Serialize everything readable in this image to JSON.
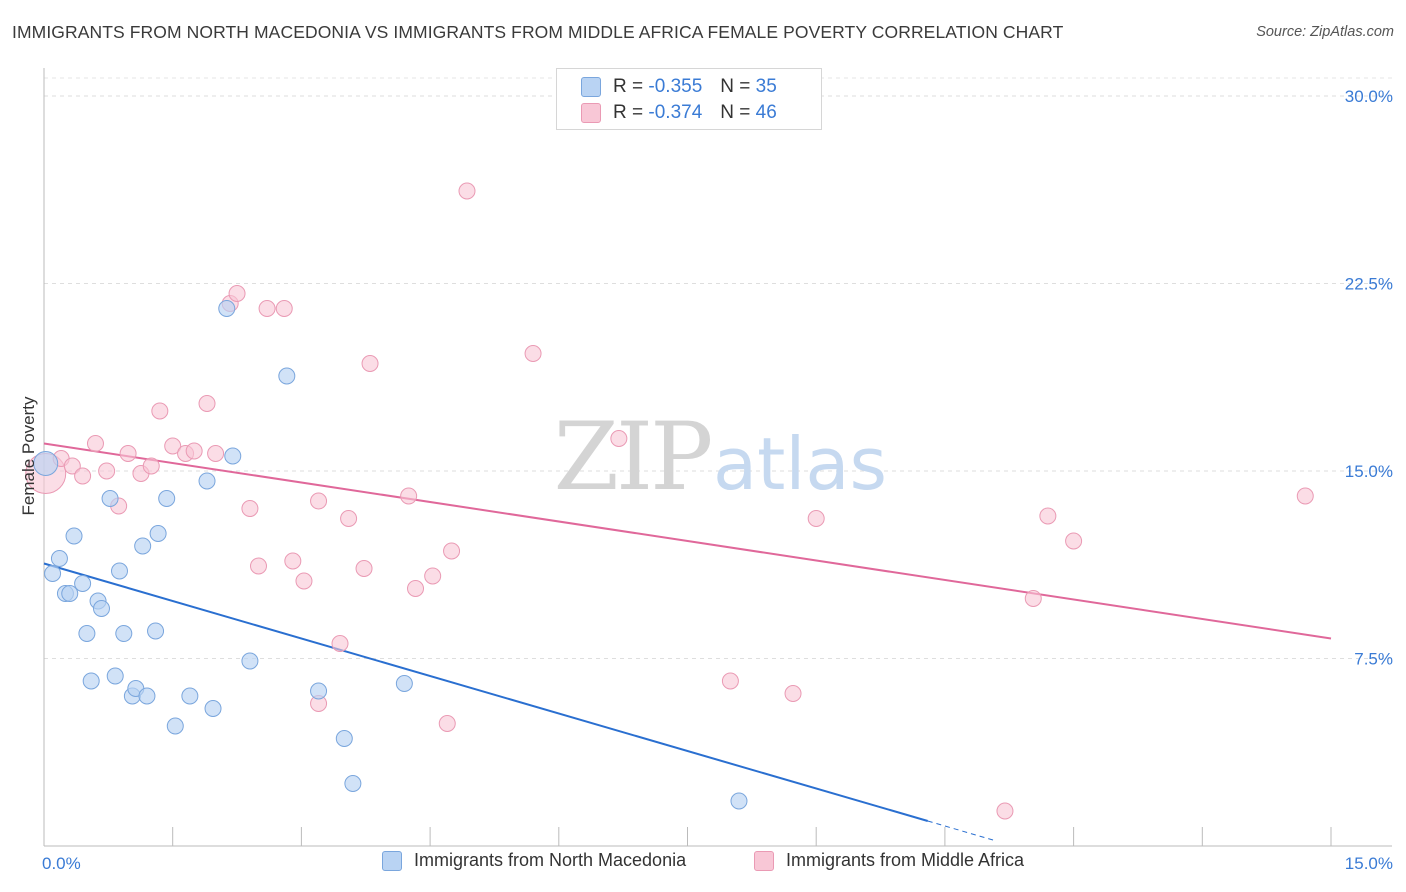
{
  "title": "IMMIGRANTS FROM NORTH MACEDONIA VS IMMIGRANTS FROM MIDDLE AFRICA FEMALE POVERTY CORRELATION CHART",
  "source": "Source: ZipAtlas.com",
  "watermark": {
    "zip": "ZIP",
    "atlas": "atlas"
  },
  "colors": {
    "blue_fill": "#b9d3f3",
    "blue_stroke": "#7aa6dd",
    "blue_line": "#2a6fd0",
    "pink_fill": "#f8c7d6",
    "pink_stroke": "#ea9ab4",
    "pink_line": "#e0689a",
    "axis_label": "#3a7bd5"
  },
  "legend_stats": [
    {
      "r_label": "R =",
      "r_value": "-0.355",
      "n_label": "N =",
      "n_value": "35"
    },
    {
      "r_label": "R =",
      "r_value": "-0.374",
      "n_label": "N =",
      "n_value": "46"
    }
  ],
  "chart_data": {
    "type": "scatter",
    "title": "IMMIGRANTS FROM NORTH MACEDONIA VS IMMIGRANTS FROM MIDDLE AFRICA FEMALE POVERTY CORRELATION CHART",
    "xlabel": "",
    "ylabel": "Female Poverty",
    "xlim": [
      0,
      15
    ],
    "ylim": [
      0,
      30
    ],
    "x_tick_labels": [
      {
        "value": 0,
        "label": "0.0%"
      },
      {
        "value": 15,
        "label": "15.0%"
      }
    ],
    "y_tick_labels": [
      {
        "value": 7.5,
        "label": "7.5%"
      },
      {
        "value": 15,
        "label": "15.0%"
      },
      {
        "value": 22.5,
        "label": "22.5%"
      },
      {
        "value": 30,
        "label": "30.0%"
      }
    ],
    "grid": true,
    "legend_position": "bottom",
    "series": [
      {
        "name": "Immigrants from North Macedonia",
        "color": "blue",
        "trend": {
          "x": [
            0.0,
            10.3
          ],
          "y": [
            11.3,
            1.0
          ],
          "dashed_to": [
            11.1,
            0.2
          ]
        },
        "points": [
          {
            "x": 0.02,
            "y": 15.3,
            "r": 12
          },
          {
            "x": 0.1,
            "y": 10.9
          },
          {
            "x": 0.18,
            "y": 11.5
          },
          {
            "x": 0.25,
            "y": 10.1
          },
          {
            "x": 0.3,
            "y": 10.1
          },
          {
            "x": 0.35,
            "y": 12.4
          },
          {
            "x": 0.45,
            "y": 10.5
          },
          {
            "x": 0.5,
            "y": 8.5
          },
          {
            "x": 0.55,
            "y": 6.6
          },
          {
            "x": 0.63,
            "y": 9.8
          },
          {
            "x": 0.67,
            "y": 9.5
          },
          {
            "x": 0.77,
            "y": 13.9
          },
          {
            "x": 0.83,
            "y": 6.8
          },
          {
            "x": 0.88,
            "y": 11.0
          },
          {
            "x": 0.93,
            "y": 8.5
          },
          {
            "x": 1.03,
            "y": 6.0
          },
          {
            "x": 1.07,
            "y": 6.3
          },
          {
            "x": 1.15,
            "y": 12.0
          },
          {
            "x": 1.2,
            "y": 6.0
          },
          {
            "x": 1.3,
            "y": 8.6
          },
          {
            "x": 1.33,
            "y": 12.5
          },
          {
            "x": 1.43,
            "y": 13.9
          },
          {
            "x": 1.53,
            "y": 4.8
          },
          {
            "x": 1.7,
            "y": 6.0
          },
          {
            "x": 1.9,
            "y": 14.6
          },
          {
            "x": 1.97,
            "y": 5.5
          },
          {
            "x": 2.13,
            "y": 21.5
          },
          {
            "x": 2.2,
            "y": 15.6
          },
          {
            "x": 2.4,
            "y": 7.4
          },
          {
            "x": 2.83,
            "y": 18.8
          },
          {
            "x": 3.2,
            "y": 6.2
          },
          {
            "x": 3.5,
            "y": 4.3
          },
          {
            "x": 3.6,
            "y": 2.5
          },
          {
            "x": 4.2,
            "y": 6.5
          },
          {
            "x": 8.1,
            "y": 1.8
          }
        ]
      },
      {
        "name": "Immigrants from Middle Africa",
        "color": "pink",
        "trend": {
          "x": [
            0.0,
            15.0
          ],
          "y": [
            16.1,
            8.3
          ]
        },
        "points": [
          {
            "x": 0.02,
            "y": 14.9,
            "r": 20
          },
          {
            "x": 0.2,
            "y": 15.5
          },
          {
            "x": 0.33,
            "y": 15.2
          },
          {
            "x": 0.45,
            "y": 14.8
          },
          {
            "x": 0.6,
            "y": 16.1
          },
          {
            "x": 0.73,
            "y": 15.0
          },
          {
            "x": 0.87,
            "y": 13.6
          },
          {
            "x": 0.98,
            "y": 15.7
          },
          {
            "x": 1.13,
            "y": 14.9
          },
          {
            "x": 1.25,
            "y": 15.2
          },
          {
            "x": 1.35,
            "y": 17.4
          },
          {
            "x": 1.5,
            "y": 16.0
          },
          {
            "x": 1.65,
            "y": 15.7
          },
          {
            "x": 1.75,
            "y": 15.8
          },
          {
            "x": 1.9,
            "y": 17.7
          },
          {
            "x": 2.0,
            "y": 15.7
          },
          {
            "x": 2.17,
            "y": 21.7
          },
          {
            "x": 2.25,
            "y": 22.1
          },
          {
            "x": 2.4,
            "y": 13.5
          },
          {
            "x": 2.5,
            "y": 11.2
          },
          {
            "x": 2.6,
            "y": 21.5
          },
          {
            "x": 2.8,
            "y": 21.5
          },
          {
            "x": 2.9,
            "y": 11.4
          },
          {
            "x": 3.03,
            "y": 10.6
          },
          {
            "x": 3.2,
            "y": 13.8
          },
          {
            "x": 3.2,
            "y": 5.7
          },
          {
            "x": 3.45,
            "y": 8.1
          },
          {
            "x": 3.55,
            "y": 13.1
          },
          {
            "x": 3.73,
            "y": 11.1
          },
          {
            "x": 3.8,
            "y": 19.3
          },
          {
            "x": 4.25,
            "y": 14.0
          },
          {
            "x": 4.33,
            "y": 10.3
          },
          {
            "x": 4.53,
            "y": 10.8
          },
          {
            "x": 4.7,
            "y": 4.9
          },
          {
            "x": 4.75,
            "y": 11.8
          },
          {
            "x": 4.93,
            "y": 26.2
          },
          {
            "x": 5.7,
            "y": 19.7
          },
          {
            "x": 6.7,
            "y": 16.3
          },
          {
            "x": 8.0,
            "y": 6.6
          },
          {
            "x": 8.73,
            "y": 6.1
          },
          {
            "x": 9.0,
            "y": 13.1
          },
          {
            "x": 11.2,
            "y": 1.4
          },
          {
            "x": 11.53,
            "y": 9.9
          },
          {
            "x": 11.7,
            "y": 13.2
          },
          {
            "x": 12.0,
            "y": 12.2
          },
          {
            "x": 14.7,
            "y": 14.0
          }
        ]
      }
    ]
  }
}
